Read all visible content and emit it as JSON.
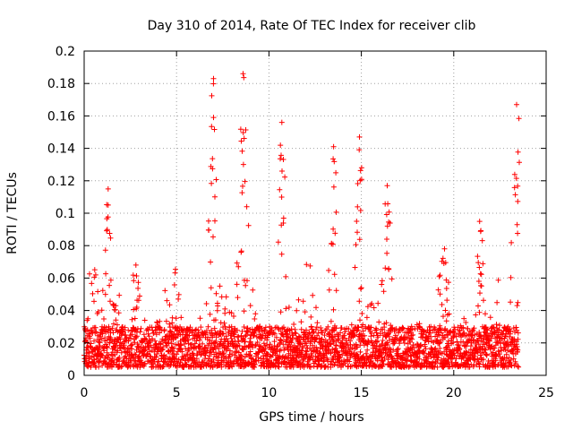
{
  "chart_data": {
    "type": "scatter",
    "title": "Day 310 of 2014, Rate Of TEC Index for receiver clib",
    "xlabel": "GPS time / hours",
    "ylabel": "ROTI / TECUs",
    "xlim": [
      0,
      25
    ],
    "ylim": [
      0,
      0.2
    ],
    "x_ticks": [
      0,
      5,
      10,
      15,
      20,
      25
    ],
    "x_tick_labels": [
      "0",
      "5",
      "10",
      "15",
      "20",
      "25"
    ],
    "y_ticks": [
      0,
      0.02,
      0.04,
      0.06,
      0.08,
      0.1,
      0.12,
      0.14,
      0.16,
      0.18,
      0.2
    ],
    "y_tick_labels": [
      "0",
      "0.02",
      "0.04",
      "0.06",
      "0.08",
      "0.1",
      "0.12",
      "0.14",
      "0.16",
      "0.18",
      "0.2"
    ],
    "grid": true,
    "marker": "+",
    "color": "#ff0000",
    "x_data_range": [
      0,
      23.5
    ],
    "baseline_roti": [
      0.005,
      0.03
    ],
    "peaks": [
      {
        "x": 1.3,
        "y": 0.115
      },
      {
        "x": 2.8,
        "y": 0.068
      },
      {
        "x": 7.0,
        "y": 0.183
      },
      {
        "x": 8.6,
        "y": 0.186
      },
      {
        "x": 10.7,
        "y": 0.156
      },
      {
        "x": 13.5,
        "y": 0.141
      },
      {
        "x": 14.9,
        "y": 0.147
      },
      {
        "x": 16.4,
        "y": 0.117
      },
      {
        "x": 19.5,
        "y": 0.078
      },
      {
        "x": 21.4,
        "y": 0.095
      },
      {
        "x": 23.4,
        "y": 0.167
      }
    ]
  }
}
